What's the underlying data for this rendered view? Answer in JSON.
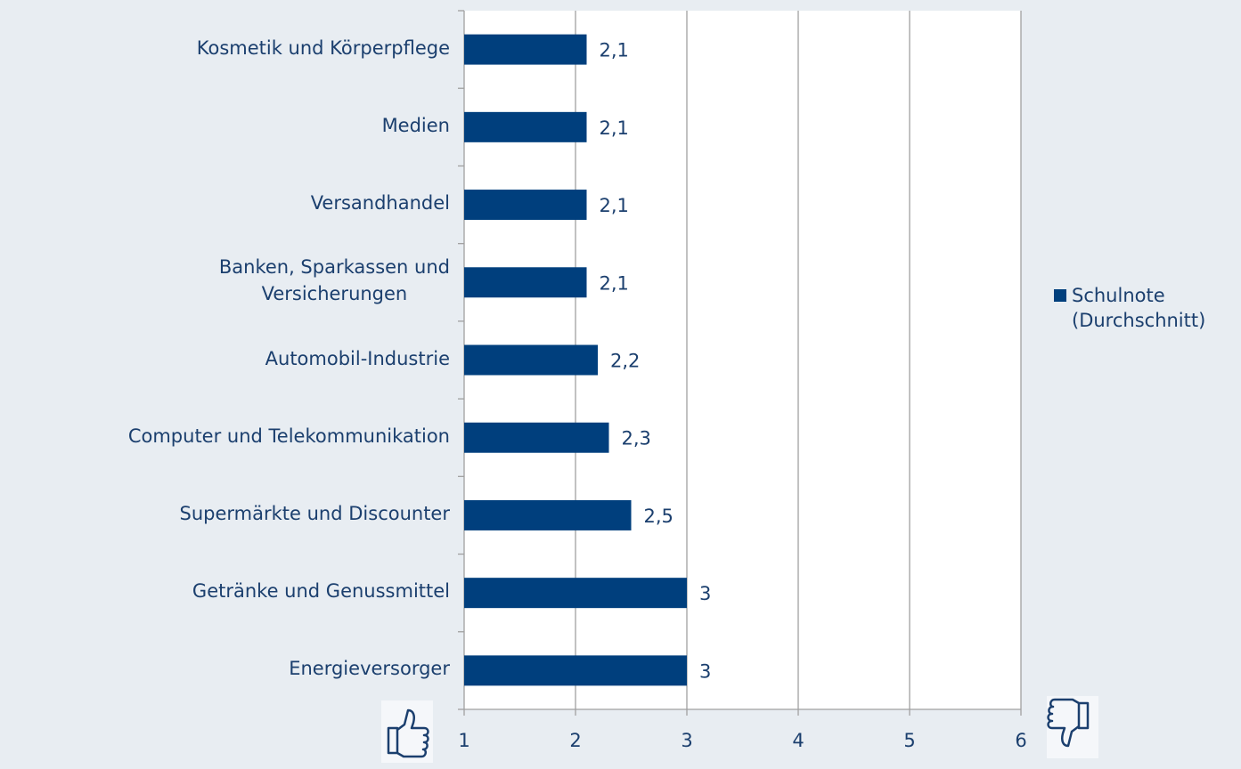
{
  "chart_data": {
    "type": "barh",
    "categories": [
      "Kosmetik und Körperpflege",
      "Medien",
      "Versandhandel",
      "Banken, Sparkassen und\nVersicherungen",
      "Automobil-Industrie",
      "Computer und Telekommunikation",
      "Supermärkte und Discounter",
      "Getränke und Genussmittel",
      "Energieversorger"
    ],
    "series": [
      {
        "name": "Schulnote (Durchschnitt)",
        "color": "#003f7d",
        "values": [
          2.1,
          2.1,
          2.1,
          2.1,
          2.2,
          2.3,
          2.5,
          3,
          3
        ],
        "value_labels": [
          "2,1",
          "2,1",
          "2,1",
          "2,1",
          "2,2",
          "2,3",
          "2,5",
          "3",
          "3"
        ]
      }
    ],
    "xlim": [
      1,
      6
    ],
    "xticks": [
      1,
      2,
      3,
      4,
      5,
      6
    ],
    "grid": true,
    "legend": "right"
  }
}
